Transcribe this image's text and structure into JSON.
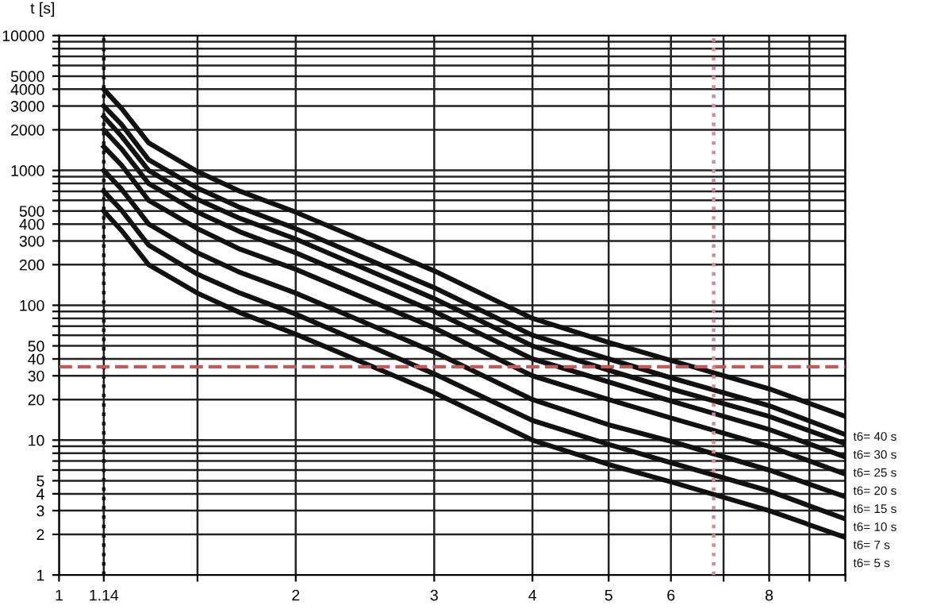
{
  "chart_data": {
    "type": "line",
    "ylabel": "t [s]",
    "log": "xy",
    "grid": true,
    "marker": "none",
    "line_style": "solid",
    "x": [
      1.14,
      1.2,
      1.3,
      1.5,
      1.7,
      2,
      3,
      4,
      5,
      6,
      8,
      10
    ],
    "xlim": [
      1,
      10
    ],
    "xticks": [
      1,
      1.14,
      {
        "value": 1.5,
        "label": null
      },
      2,
      3,
      4,
      5,
      6,
      {
        "value": 7,
        "label": null
      },
      8,
      {
        "value": 9,
        "label": null
      },
      {
        "value": 10,
        "label": null
      }
    ],
    "ylim": [
      1,
      10000
    ],
    "yticks": [
      1,
      2,
      3,
      4,
      5,
      {
        "value": 6,
        "label": null
      },
      {
        "value": 7,
        "label": null
      },
      {
        "value": 8,
        "label": null
      },
      {
        "value": 9,
        "label": null
      },
      10,
      20,
      30,
      40,
      50,
      {
        "value": 60,
        "label": null
      },
      {
        "value": 70,
        "label": null
      },
      {
        "value": 80,
        "label": null
      },
      {
        "value": 90,
        "label": null
      },
      100,
      200,
      300,
      400,
      500,
      {
        "value": 600,
        "label": null
      },
      {
        "value": 700,
        "label": null
      },
      {
        "value": 800,
        "label": null
      },
      {
        "value": 900,
        "label": null
      },
      1000,
      2000,
      3000,
      4000,
      5000,
      {
        "value": 6000,
        "label": null
      },
      {
        "value": 7000,
        "label": null
      },
      {
        "value": 8000,
        "label": null
      },
      {
        "value": 9000,
        "label": null
      },
      10000
    ],
    "series": [
      {
        "name": "t6= 40 s",
        "color": "#111111",
        "values": [
          4000,
          2900,
          1600,
          980,
          700,
          490,
          180,
          80,
          53,
          39,
          24,
          15
        ]
      },
      {
        "name": "t6= 30 s",
        "color": "#111111",
        "values": [
          3000,
          2200,
          1200,
          740,
          530,
          370,
          135,
          60,
          40,
          29,
          18,
          11
        ]
      },
      {
        "name": "t6= 25 s",
        "color": "#111111",
        "values": [
          2500,
          1800,
          1000,
          610,
          440,
          310,
          112,
          50,
          33,
          24,
          15,
          9.4
        ]
      },
      {
        "name": "t6= 20 s",
        "color": "#111111",
        "values": [
          2000,
          1450,
          800,
          490,
          350,
          245,
          90,
          40,
          27,
          19.5,
          12,
          7.5
        ]
      },
      {
        "name": "t6= 15 s",
        "color": "#111111",
        "values": [
          1500,
          1100,
          600,
          370,
          260,
          185,
          68,
          30,
          20,
          14.6,
          9,
          5.6
        ]
      },
      {
        "name": "t6= 10 s",
        "color": "#111111",
        "values": [
          1000,
          730,
          400,
          245,
          175,
          123,
          45,
          20,
          13,
          9.8,
          6,
          3.8
        ]
      },
      {
        "name": "t6= 7 s",
        "color": "#111111",
        "values": [
          700,
          510,
          280,
          170,
          123,
          86,
          31,
          14,
          9.3,
          6.8,
          4.2,
          2.6
        ]
      },
      {
        "name": "t6= 5 s",
        "color": "#111111",
        "values": [
          500,
          360,
          200,
          123,
          88,
          61,
          22.5,
          10,
          6.6,
          4.9,
          3,
          1.9
        ]
      }
    ],
    "ref_lines": [
      {
        "axis": "x",
        "value": 1.14,
        "color": "#111111",
        "line_style": "dotted"
      },
      {
        "axis": "y",
        "value": 35,
        "color": "#cc5555",
        "line_style": "dashed"
      },
      {
        "axis": "x",
        "value": 6.8,
        "color": "#dd8888",
        "line_style": "dotted"
      }
    ]
  }
}
